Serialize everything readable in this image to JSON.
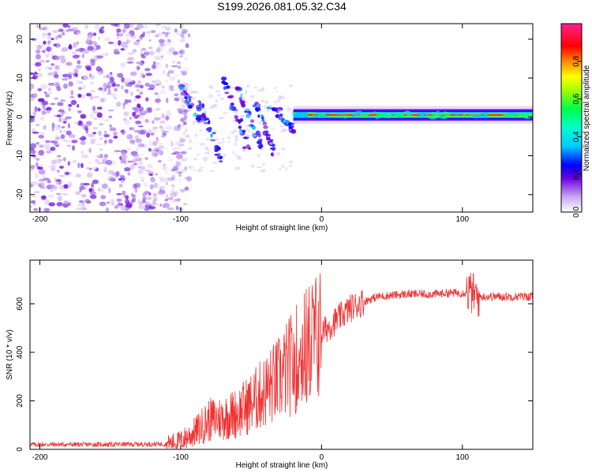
{
  "title": "S199.2026.081.05.32.C34",
  "chart_data": [
    {
      "type": "heatmap",
      "name": "spectrogram",
      "xlabel": "Height of straight line (km)",
      "ylabel": "Frequency (Hz)",
      "xlim": [
        -207,
        150
      ],
      "ylim": [
        -24.5,
        24
      ],
      "xticks": [
        -200,
        -100,
        0,
        100
      ],
      "yticks": [
        -20,
        -10,
        0,
        10,
        20
      ],
      "colorbar": {
        "label": "Normalized spectral amplitude",
        "range": [
          0,
          1
        ],
        "ticks": [
          "0.0",
          "0.2",
          "0.4",
          "0.6",
          "0.8"
        ]
      },
      "regions": [
        {
          "name": "diffuse noise",
          "x_range": [
            -207,
            -100
          ],
          "freq_range": [
            -24,
            24
          ],
          "amplitude": 0.03
        },
        {
          "name": "scattered arcs",
          "x_range": [
            -100,
            -20
          ],
          "freq_range": [
            -15,
            10
          ],
          "amplitude": 0.15
        },
        {
          "name": "carrier line",
          "x_range": [
            -20,
            150
          ],
          "freq_center": 0.5,
          "amplitude": 0.9
        }
      ]
    },
    {
      "type": "line",
      "name": "snr",
      "xlabel": "Height of straight line (km)",
      "ylabel": "SNR (10 * v/v)",
      "xlim": [
        -207,
        150
      ],
      "ylim": [
        0,
        780
      ],
      "xticks": [
        -200,
        -100,
        0,
        100
      ],
      "yticks": [
        0,
        200,
        400,
        600
      ],
      "color": "#ee3333",
      "series": [
        {
          "name": "SNR",
          "x": [
            -207,
            -150,
            -110,
            -100,
            -90,
            -80,
            -70,
            -60,
            -50,
            -40,
            -30,
            -20,
            -10,
            0,
            10,
            20,
            30,
            40,
            50,
            60,
            70,
            80,
            90,
            100,
            105,
            108,
            110,
            120,
            130,
            140,
            150
          ],
          "y": [
            20,
            20,
            22,
            35,
            70,
            120,
            130,
            150,
            190,
            240,
            290,
            360,
            430,
            480,
            530,
            580,
            610,
            630,
            635,
            640,
            640,
            640,
            645,
            645,
            650,
            640,
            630,
            630,
            630,
            630,
            630
          ]
        }
      ]
    }
  ]
}
